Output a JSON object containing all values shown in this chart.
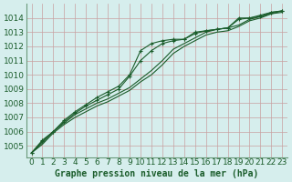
{
  "xlabel": "Graphe pression niveau de la mer (hPa)",
  "xlim": [
    -0.5,
    23.5
  ],
  "ylim": [
    1004.2,
    1015.0
  ],
  "yticks": [
    1005,
    1006,
    1007,
    1008,
    1009,
    1010,
    1011,
    1012,
    1013,
    1014
  ],
  "xticks": [
    0,
    1,
    2,
    3,
    4,
    5,
    6,
    7,
    8,
    9,
    10,
    11,
    12,
    13,
    14,
    15,
    16,
    17,
    18,
    19,
    20,
    21,
    22,
    23
  ],
  "bg_color": "#d6eeed",
  "line_color": "#1a5c2a",
  "grid_color": "#c8a0a0",
  "border_color": "#6a9a7a",
  "series": [
    [
      1004.5,
      1005.1,
      1005.9,
      1006.5,
      1007.0,
      1007.4,
      1007.8,
      1008.1,
      1008.5,
      1008.9,
      1009.5,
      1010.0,
      1010.7,
      1011.5,
      1012.0,
      1012.4,
      1012.8,
      1013.0,
      1013.1,
      1013.4,
      1013.8,
      1014.0,
      1014.3,
      1014.4
    ],
    [
      1004.5,
      1005.2,
      1006.0,
      1006.6,
      1007.2,
      1007.6,
      1008.0,
      1008.3,
      1008.7,
      1009.1,
      1009.7,
      1010.3,
      1011.0,
      1011.8,
      1012.2,
      1012.6,
      1013.0,
      1013.2,
      1013.3,
      1013.5,
      1013.9,
      1014.1,
      1014.3,
      1014.5
    ],
    [
      1004.5,
      1005.3,
      1006.0,
      1006.7,
      1007.3,
      1007.8,
      1008.2,
      1008.6,
      1009.0,
      1009.9,
      1011.0,
      1011.7,
      1012.2,
      1012.4,
      1012.5,
      1012.9,
      1013.1,
      1013.2,
      1013.3,
      1013.9,
      1014.0,
      1014.1,
      1014.4,
      1014.5
    ],
    [
      1004.5,
      1005.4,
      1006.0,
      1006.8,
      1007.4,
      1007.9,
      1008.4,
      1008.8,
      1009.2,
      1010.0,
      1011.7,
      1012.2,
      1012.4,
      1012.5,
      1012.5,
      1013.0,
      1013.1,
      1013.2,
      1013.3,
      1014.0,
      1014.0,
      1014.2,
      1014.4,
      1014.5
    ]
  ],
  "markers": [
    false,
    false,
    true,
    true
  ],
  "fontsize": 6.5,
  "label_fontsize": 7.0
}
